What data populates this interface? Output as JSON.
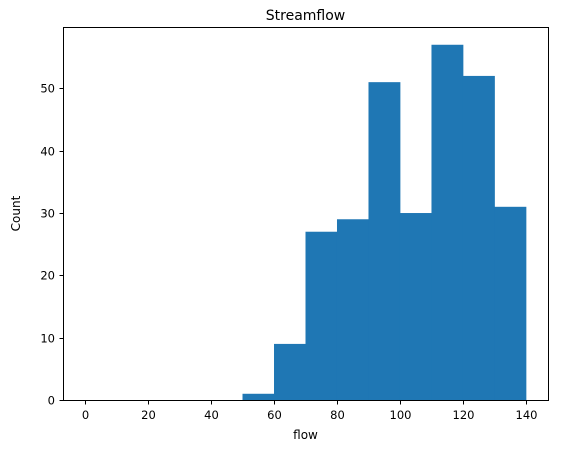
{
  "colors": {
    "bar": "#1f77b4",
    "axis": "#000000",
    "background": "#ffffff"
  },
  "chart_data": {
    "type": "bar",
    "title": "Streamflow",
    "xlabel": "flow",
    "ylabel": "Count",
    "xlim": [
      -7,
      147
    ],
    "ylim": [
      0,
      59.85
    ],
    "x_ticks": [
      0,
      20,
      40,
      60,
      80,
      100,
      120,
      140
    ],
    "y_ticks": [
      0,
      10,
      20,
      30,
      40,
      50
    ],
    "grid": false,
    "legend": "none",
    "bins": [
      {
        "start": 0,
        "end": 10,
        "count": 0
      },
      {
        "start": 10,
        "end": 20,
        "count": 0
      },
      {
        "start": 20,
        "end": 30,
        "count": 0
      },
      {
        "start": 30,
        "end": 40,
        "count": 0
      },
      {
        "start": 40,
        "end": 50,
        "count": 0
      },
      {
        "start": 50,
        "end": 60,
        "count": 1
      },
      {
        "start": 60,
        "end": 70,
        "count": 9
      },
      {
        "start": 70,
        "end": 80,
        "count": 27
      },
      {
        "start": 80,
        "end": 90,
        "count": 29
      },
      {
        "start": 90,
        "end": 100,
        "count": 51
      },
      {
        "start": 100,
        "end": 110,
        "count": 30
      },
      {
        "start": 110,
        "end": 120,
        "count": 57
      },
      {
        "start": 120,
        "end": 130,
        "count": 52
      },
      {
        "start": 130,
        "end": 140,
        "count": 31
      }
    ]
  }
}
